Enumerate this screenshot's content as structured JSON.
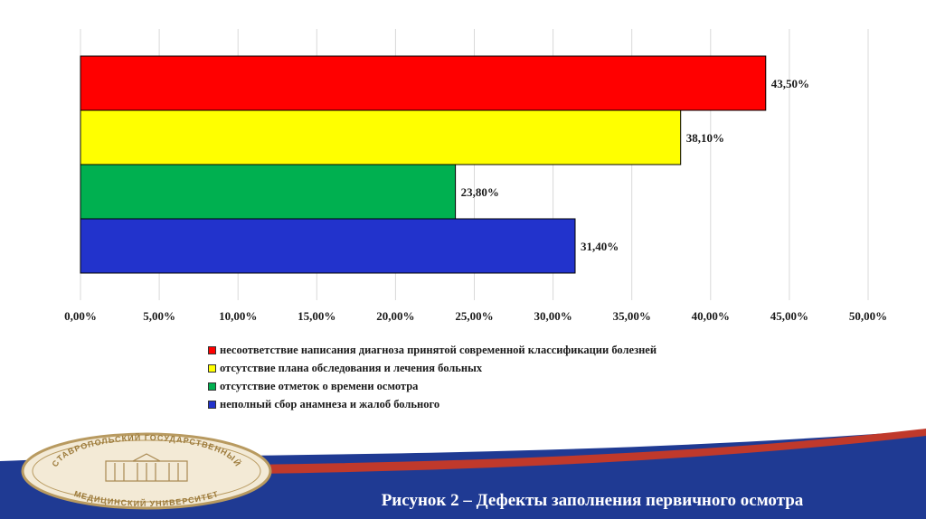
{
  "chart_data": {
    "type": "bar",
    "orientation": "horizontal",
    "categories": [
      "несоответствие написания диагноза принятой современной классификации болезней",
      "отсутствие плана обследования и лечения больных",
      "отсутствие отметок о времени осмотра",
      "неполный сбор анамнеза и жалоб больного"
    ],
    "values": [
      43.5,
      38.1,
      23.8,
      31.4
    ],
    "data_labels": [
      "43,50%",
      "38,10%",
      "23,80%",
      "31,40%"
    ],
    "colors": [
      "#ff0000",
      "#ffff00",
      "#00b050",
      "#2233cc"
    ],
    "xlim": [
      0,
      50
    ],
    "x_ticks": [
      0,
      5,
      10,
      15,
      20,
      25,
      30,
      35,
      40,
      45,
      50
    ],
    "x_tick_labels": [
      "0,00%",
      "5,00%",
      "10,00%",
      "15,00%",
      "20,00%",
      "25,00%",
      "30,00%",
      "35,00%",
      "40,00%",
      "45,00%",
      "50,00%"
    ],
    "grid": true,
    "legend_position": "bottom",
    "title": "",
    "xlabel": "",
    "ylabel": ""
  },
  "footer": {
    "caption": "Рисунок 2 – Дефекты заполнения первичного осмотра",
    "logo_text_top": "СТАВРОПОЛЬСКИЙ ГОСУДАРСТВЕННЫЙ",
    "logo_text_bottom": "МЕДИЦИНСКИЙ УНИВЕРСИТЕТ",
    "band_color": "#1f3a93",
    "accent_color": "#c0392b"
  }
}
